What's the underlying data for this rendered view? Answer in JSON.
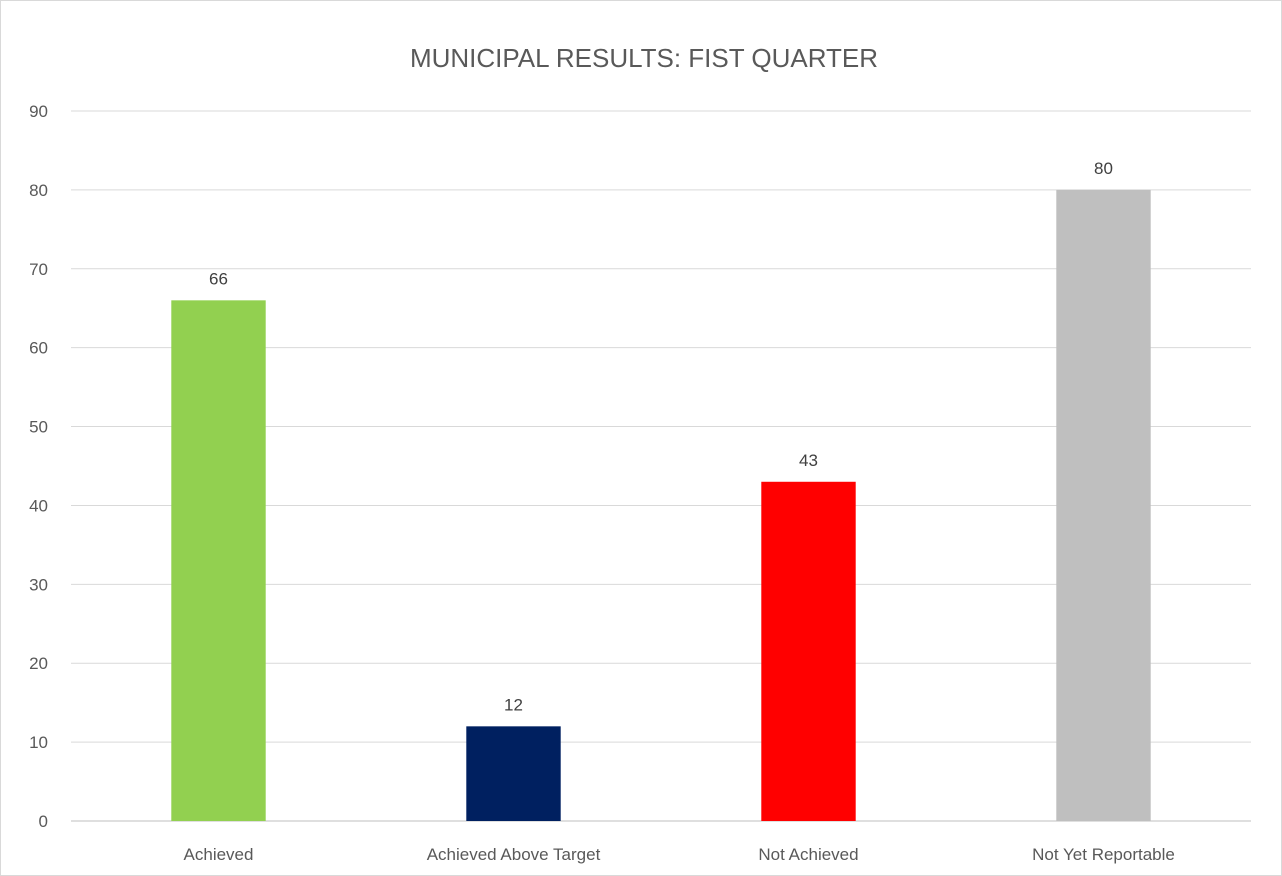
{
  "chart_data": {
    "type": "bar",
    "title": "MUNICIPAL RESULTS: FIST QUARTER",
    "categories": [
      "Achieved",
      "Achieved Above Target",
      "Not Achieved",
      "Not Yet Reportable"
    ],
    "values": [
      66,
      12,
      43,
      80
    ],
    "colors": [
      "#92d050",
      "#002060",
      "#ff0000",
      "#bfbfbf"
    ],
    "ylim": [
      0,
      90
    ],
    "yticks": [
      0,
      10,
      20,
      30,
      40,
      50,
      60,
      70,
      80,
      90
    ],
    "xlabel": "",
    "ylabel": "",
    "grid": true,
    "legend": "none",
    "data_labels": true
  }
}
